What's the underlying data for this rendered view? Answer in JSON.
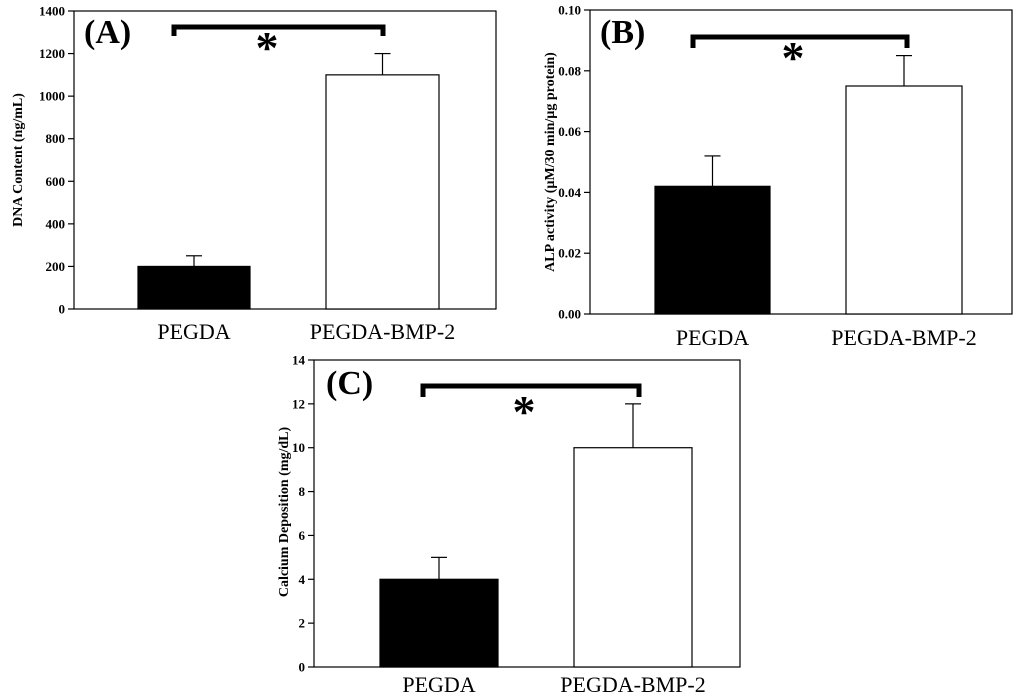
{
  "chart_data": [
    {
      "type": "bar",
      "panel_label": "(A)",
      "categories": [
        "PEGDA",
        "PEGDA-BMP-2"
      ],
      "values": [
        200,
        1100
      ],
      "errors": [
        50,
        100
      ],
      "bar_colors": [
        "#000000",
        "#ffffff"
      ],
      "ylabel": "DNA Content (ng/mL)",
      "ylim": [
        0,
        1400
      ],
      "yticks": [
        0,
        200,
        400,
        600,
        800,
        1000,
        1200,
        1400
      ],
      "ytick_labels": [
        "0",
        "200",
        "400",
        "600",
        "800",
        "1000",
        "1200",
        "1400"
      ],
      "significance": "*"
    },
    {
      "type": "bar",
      "panel_label": "(B)",
      "categories": [
        "PEGDA",
        "PEGDA-BMP-2"
      ],
      "values": [
        0.042,
        0.075
      ],
      "errors": [
        0.01,
        0.01
      ],
      "bar_colors": [
        "#000000",
        "#ffffff"
      ],
      "ylabel": "ALP activity (µM/30 min/µg protein)",
      "ylim": [
        0,
        0.1
      ],
      "yticks": [
        0,
        0.02,
        0.04,
        0.06,
        0.08,
        0.1
      ],
      "ytick_labels": [
        "0.00",
        "0.02",
        "0.04",
        "0.06",
        "0.08",
        "0.10"
      ],
      "significance": "*"
    },
    {
      "type": "bar",
      "panel_label": "(C)",
      "categories": [
        "PEGDA",
        "PEGDA-BMP-2"
      ],
      "values": [
        4,
        10
      ],
      "errors": [
        1,
        2
      ],
      "bar_colors": [
        "#000000",
        "#ffffff"
      ],
      "ylabel": "Calcium Deposition (mg/dL)",
      "ylim": [
        0,
        14
      ],
      "yticks": [
        0,
        2,
        4,
        6,
        8,
        10,
        12,
        14
      ],
      "ytick_labels": [
        "0",
        "2",
        "4",
        "6",
        "8",
        "10",
        "12",
        "14"
      ],
      "significance": "*"
    }
  ]
}
